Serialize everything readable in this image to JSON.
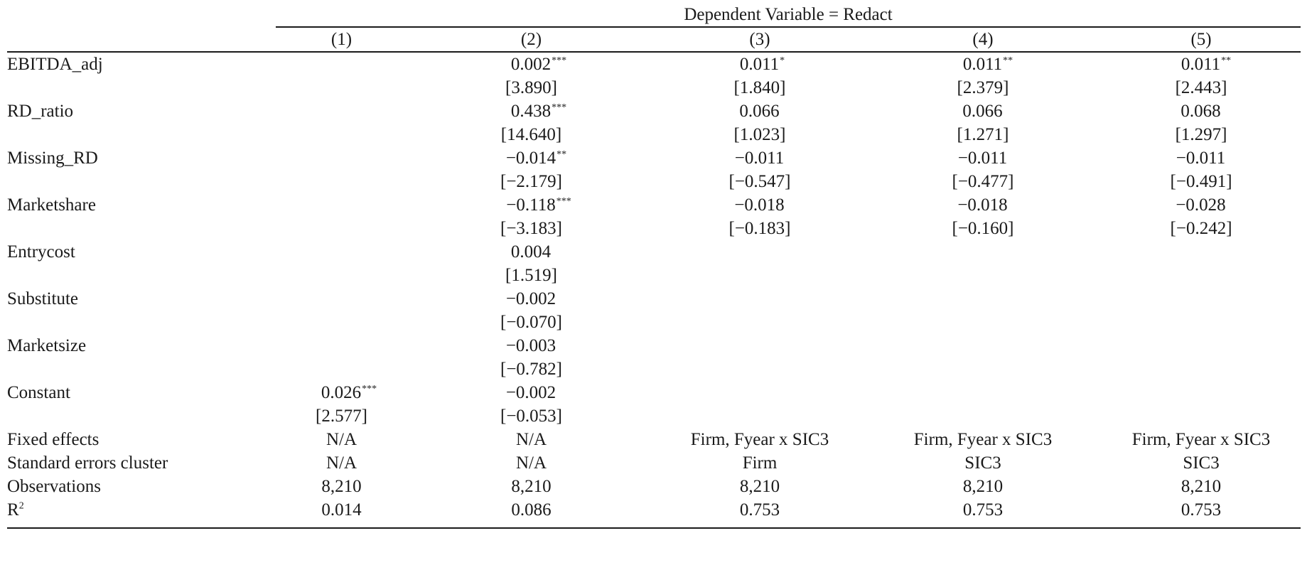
{
  "dependent_variable_header": "Dependent Variable = Redact",
  "columns": [
    "(1)",
    "(2)",
    "(3)",
    "(4)",
    "(5)"
  ],
  "rows": [
    {
      "label": "EBITDA_adj",
      "coef": [
        {
          "v": "",
          "s": ""
        },
        {
          "v": "0.002",
          "s": "***"
        },
        {
          "v": "0.011",
          "s": "*"
        },
        {
          "v": "0.011",
          "s": "**"
        },
        {
          "v": "0.011",
          "s": "**"
        }
      ],
      "tstat": [
        "",
        "[3.890]",
        "[1.840]",
        "[2.379]",
        "[2.443]"
      ]
    },
    {
      "label": "RD_ratio",
      "coef": [
        {
          "v": "",
          "s": ""
        },
        {
          "v": "0.438",
          "s": "***"
        },
        {
          "v": "0.066",
          "s": ""
        },
        {
          "v": "0.066",
          "s": ""
        },
        {
          "v": "0.068",
          "s": ""
        }
      ],
      "tstat": [
        "",
        "[14.640]",
        "[1.023]",
        "[1.271]",
        "[1.297]"
      ]
    },
    {
      "label": "Missing_RD",
      "coef": [
        {
          "v": "",
          "s": ""
        },
        {
          "v": "−0.014",
          "s": "**"
        },
        {
          "v": "−0.011",
          "s": ""
        },
        {
          "v": "−0.011",
          "s": ""
        },
        {
          "v": "−0.011",
          "s": ""
        }
      ],
      "tstat": [
        "",
        "[−2.179]",
        "[−0.547]",
        "[−0.477]",
        "[−0.491]"
      ]
    },
    {
      "label": "Marketshare",
      "coef": [
        {
          "v": "",
          "s": ""
        },
        {
          "v": "−0.118",
          "s": "***"
        },
        {
          "v": "−0.018",
          "s": ""
        },
        {
          "v": "−0.018",
          "s": ""
        },
        {
          "v": "−0.028",
          "s": ""
        }
      ],
      "tstat": [
        "",
        "[−3.183]",
        "[−0.183]",
        "[−0.160]",
        "[−0.242]"
      ]
    },
    {
      "label": "Entrycost",
      "coef": [
        {
          "v": "",
          "s": ""
        },
        {
          "v": "0.004",
          "s": ""
        },
        {
          "v": "",
          "s": ""
        },
        {
          "v": "",
          "s": ""
        },
        {
          "v": "",
          "s": ""
        }
      ],
      "tstat": [
        "",
        "[1.519]",
        "",
        "",
        ""
      ]
    },
    {
      "label": "Substitute",
      "coef": [
        {
          "v": "",
          "s": ""
        },
        {
          "v": "−0.002",
          "s": ""
        },
        {
          "v": "",
          "s": ""
        },
        {
          "v": "",
          "s": ""
        },
        {
          "v": "",
          "s": ""
        }
      ],
      "tstat": [
        "",
        "[−0.070]",
        "",
        "",
        ""
      ]
    },
    {
      "label": "Marketsize",
      "coef": [
        {
          "v": "",
          "s": ""
        },
        {
          "v": "−0.003",
          "s": ""
        },
        {
          "v": "",
          "s": ""
        },
        {
          "v": "",
          "s": ""
        },
        {
          "v": "",
          "s": ""
        }
      ],
      "tstat": [
        "",
        "[−0.782]",
        "",
        "",
        ""
      ]
    },
    {
      "label": "Constant",
      "coef": [
        {
          "v": "0.026",
          "s": "***"
        },
        {
          "v": "−0.002",
          "s": ""
        },
        {
          "v": "",
          "s": ""
        },
        {
          "v": "",
          "s": ""
        },
        {
          "v": "",
          "s": ""
        }
      ],
      "tstat": [
        "[2.577]",
        "[−0.053]",
        "",
        "",
        ""
      ]
    }
  ],
  "footer_rows": [
    {
      "label": "Fixed effects",
      "values": [
        "N/A",
        "N/A",
        "Firm, Fyear x SIC3",
        "Firm, Fyear x SIC3",
        "Firm, Fyear x SIC3"
      ]
    },
    {
      "label": "Standard errors cluster",
      "values": [
        "N/A",
        "N/A",
        "Firm",
        "SIC3",
        "SIC3"
      ]
    },
    {
      "label": "Observations",
      "values": [
        "8,210",
        "8,210",
        "8,210",
        "8,210",
        "8,210"
      ]
    },
    {
      "label": "R",
      "label_sup": "2",
      "values": [
        "0.014",
        "0.086",
        "0.753",
        "0.753",
        "0.753"
      ]
    }
  ]
}
